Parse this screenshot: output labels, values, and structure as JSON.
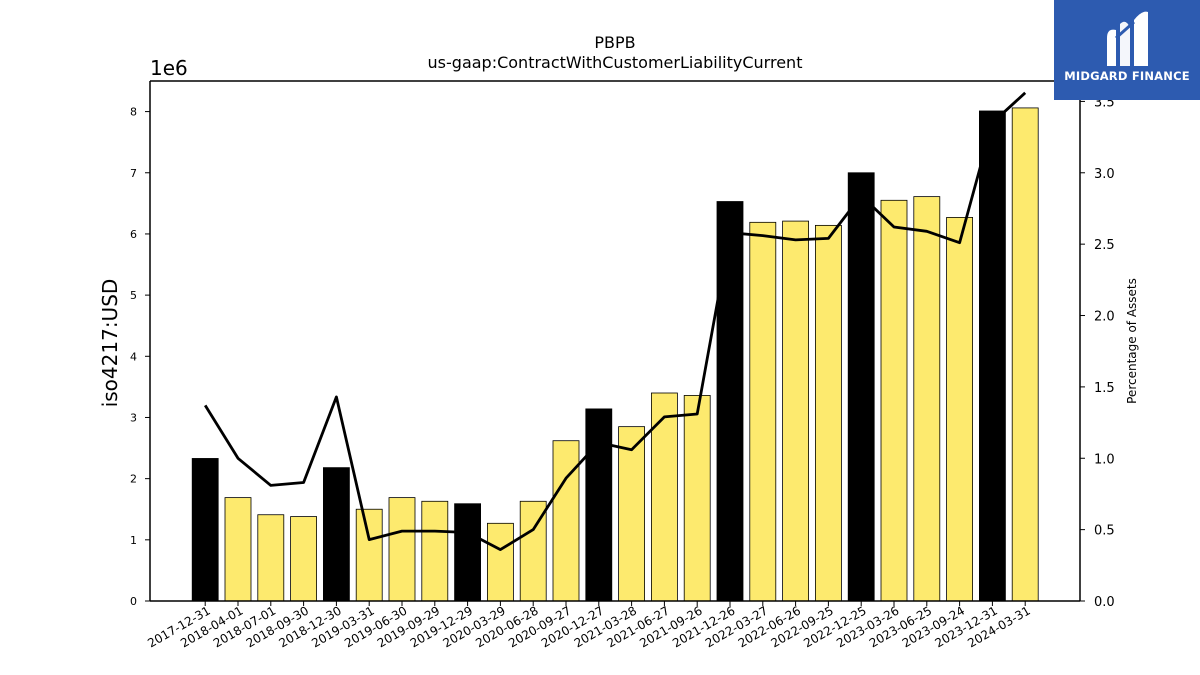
{
  "chart_data": {
    "type": "bar",
    "title": "PBPB",
    "subtitle": "us-gaap:ContractWithCustomerLiabilityCurrent",
    "ylabel": "iso4217:USD",
    "y_multiplier_label": "1e6",
    "y2label": "Percentage of Assets",
    "ylim": [
      0,
      8.5
    ],
    "y2lim": [
      0,
      3.643
    ],
    "yticks": [
      "0",
      "1",
      "2",
      "3",
      "4",
      "5",
      "6",
      "7",
      "8"
    ],
    "y2ticks": [
      "0.0",
      "0.5",
      "1.0",
      "1.5",
      "2.0",
      "2.5",
      "3.0",
      "3.5"
    ],
    "grid": false,
    "categories": [
      "2017-12-31",
      "2018-04-01",
      "2018-07-01",
      "2018-09-30",
      "2018-12-30",
      "2019-03-31",
      "2019-06-30",
      "2019-09-29",
      "2019-12-29",
      "2020-03-29",
      "2020-06-28",
      "2020-09-27",
      "2020-12-27",
      "2021-03-28",
      "2021-06-27",
      "2021-09-26",
      "2021-12-26",
      "2022-03-27",
      "2022-06-26",
      "2022-09-25",
      "2022-12-25",
      "2023-03-26",
      "2023-06-25",
      "2023-09-24",
      "2023-12-31",
      "2024-03-31"
    ],
    "series": [
      {
        "kind": "bar",
        "unit_multiplier": 1000000,
        "values": [
          2.33,
          1.69,
          1.41,
          1.38,
          2.18,
          1.5,
          1.69,
          1.63,
          1.59,
          1.27,
          1.63,
          2.62,
          3.14,
          2.85,
          3.4,
          3.36,
          6.53,
          6.19,
          6.21,
          6.14,
          7.0,
          6.55,
          6.61,
          6.27,
          8.01,
          8.06
        ],
        "fiscal_year_end": [
          true,
          false,
          false,
          false,
          true,
          false,
          false,
          false,
          true,
          false,
          false,
          false,
          true,
          false,
          false,
          false,
          true,
          false,
          false,
          false,
          true,
          false,
          false,
          false,
          true,
          false
        ],
        "colors": {
          "year_end": "#000000",
          "quarter": "#fdea6e",
          "edge": "#000000"
        }
      },
      {
        "kind": "line",
        "axis": "y2",
        "color": "#000000",
        "values": [
          1.37,
          1.0,
          0.81,
          0.83,
          1.43,
          0.43,
          0.49,
          0.49,
          0.48,
          0.36,
          0.5,
          0.86,
          1.11,
          1.06,
          1.29,
          1.31,
          2.58,
          2.56,
          2.53,
          2.54,
          2.84,
          2.62,
          2.59,
          2.51,
          3.35,
          3.56
        ]
      }
    ]
  },
  "logo": {
    "text": "MIDGARD FINANCE",
    "icon": "midgard-m-logo-icon",
    "background": "#2d5bb0"
  }
}
